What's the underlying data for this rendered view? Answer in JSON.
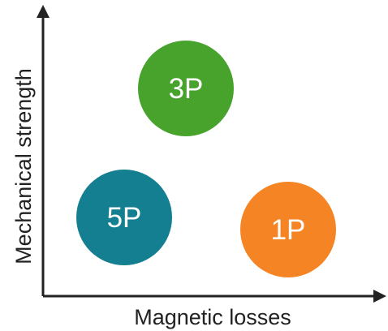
{
  "axes": {
    "x_label": "Magnetic losses",
    "y_label": "Mechanical strength"
  },
  "bubbles": [
    {
      "label": "3P",
      "color": "#47a32c"
    },
    {
      "label": "5P",
      "color": "#137f90"
    },
    {
      "label": "1P",
      "color": "#f58424"
    }
  ]
}
